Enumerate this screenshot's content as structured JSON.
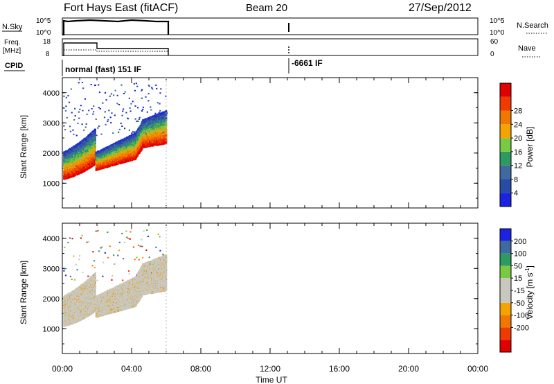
{
  "header": {
    "station": "Fort Hays East (fitACF)",
    "beam": "Beam 20",
    "date": "27/Sep/2012"
  },
  "panels": {
    "nsky_label": "N.Sky",
    "nsearch_label": "N.Search",
    "nsky_ticks": [
      "10^5",
      "10^0"
    ],
    "nsearch_ticks": [
      "10^5",
      "10^0"
    ],
    "freq_label": "Freq.",
    "freq_unit": "[MHz]",
    "freq_ticks": [
      "18",
      "8"
    ],
    "nave_label": "Nave",
    "nave_ticks": [
      "60",
      "0"
    ],
    "cpid_label": "CPID",
    "cpid_mode_1": "normal (fast) 151 IF",
    "cpid_mode_2": "-6661 IF"
  },
  "colors": {
    "power": [
      "#1b22e0",
      "#2a4aa8",
      "#3e6aa0",
      "#2e9a63",
      "#7ac943",
      "#f5a300",
      "#f07800",
      "#f03a00",
      "#e00000"
    ],
    "velocity": [
      "#e00000",
      "#f03a00",
      "#f07800",
      "#f5a300",
      "#c8c8c0",
      "#c8c8c0",
      "#7ac943",
      "#2e9a63",
      "#3e6aa0",
      "#1b22e0"
    ]
  },
  "chart_data": [
    {
      "type": "heatmap",
      "name": "power",
      "ylabel": "Slant Range [km]",
      "xlabel": "Time UT",
      "x_ticks": [
        "00:00",
        "04:00",
        "08:00",
        "12:00",
        "16:00",
        "20:00",
        "00:00"
      ],
      "y_ticks": [
        "1000",
        "2000",
        "3000",
        "4000"
      ],
      "xlim_hours": [
        0,
        24
      ],
      "ylim_km": [
        180,
        4500
      ],
      "colorbar_label": "Power [dB]",
      "colorbar_ticks": [
        "4",
        "8",
        "12",
        "16",
        "20",
        "24",
        "28"
      ],
      "colorbar_range": [
        0,
        32
      ],
      "data_until_hours": 6.0
    },
    {
      "type": "heatmap",
      "name": "velocity",
      "ylabel": "Slant Range [km]",
      "xlabel": "Time UT",
      "x_ticks": [
        "00:00",
        "04:00",
        "08:00",
        "12:00",
        "16:00",
        "20:00",
        "00:00"
      ],
      "y_ticks": [
        "1000",
        "2000",
        "3000",
        "4000"
      ],
      "xlim_hours": [
        0,
        24
      ],
      "ylim_km": [
        180,
        4500
      ],
      "colorbar_label": "Velocity [m s^-1]",
      "colorbar_ticks": [
        "200",
        "100",
        "50",
        "15",
        "-15",
        "-50",
        "-100",
        "-200"
      ],
      "data_until_hours": 6.0
    }
  ]
}
